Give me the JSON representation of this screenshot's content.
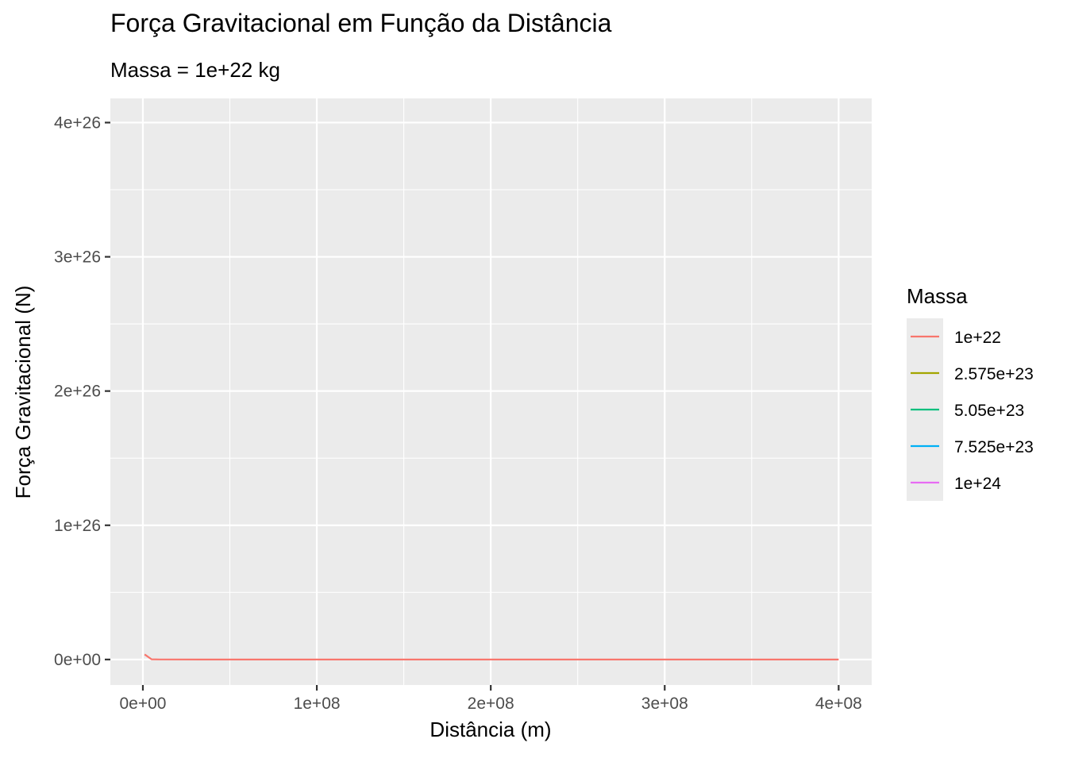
{
  "chart_data": {
    "type": "line",
    "title": "Força Gravitacional em Função da Distância",
    "subtitle": "Massa = 1e+22 kg",
    "xlabel": "Distância (m)",
    "ylabel": "Força Gravitacional (N)",
    "xlim": [
      -18700000,
      419000000
    ],
    "ylim": [
      -1.9e+25,
      4.18e+26
    ],
    "x_ticks": [
      0,
      100000000,
      200000000,
      300000000,
      400000000
    ],
    "x_tick_labels": [
      "0e+00",
      "1e+08",
      "2e+08",
      "3e+08",
      "4e+08"
    ],
    "y_ticks": [
      0,
      1e+26,
      2e+26,
      3e+26,
      4e+26
    ],
    "y_tick_labels": [
      "0e+00",
      "1e+26",
      "2e+26",
      "3e+26",
      "4e+26"
    ],
    "grid": true,
    "legend": {
      "title": "Massa",
      "position": "right"
    },
    "series": [
      {
        "name": "1e+22",
        "color": "#F8766D",
        "x": [
          1000000,
          5000000,
          10000000,
          50000000,
          100000000,
          200000000,
          300000000,
          400000000
        ],
        "y": [
          3.8e+24,
          1.5e+23,
          3.8e+22,
          1.5e+21,
          3.8e+20,
          9.5e+19,
          4.2e+19,
          2.4e+19
        ]
      },
      {
        "name": "2.575e+23",
        "color": "#A3A500",
        "x": [],
        "y": []
      },
      {
        "name": "5.05e+23",
        "color": "#00BF7D",
        "x": [],
        "y": []
      },
      {
        "name": "7.525e+23",
        "color": "#00B0F6",
        "x": [],
        "y": []
      },
      {
        "name": "1e+24",
        "color": "#E76BF3",
        "x": [],
        "y": []
      }
    ]
  }
}
